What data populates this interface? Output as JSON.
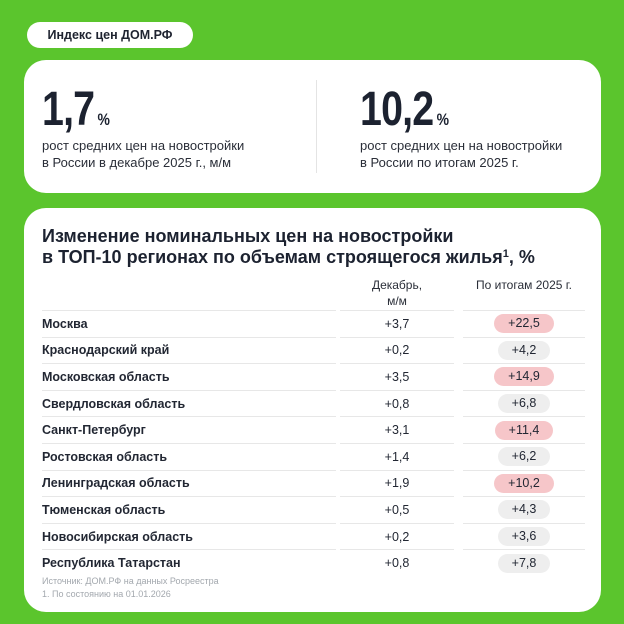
{
  "colors": {
    "background": "#5bc52d",
    "card": "#ffffff",
    "highlight_pill": "#f6c6c9",
    "neutral_pill": "#eeeeee"
  },
  "badge": {
    "label": "Индекс цен ДОМ.РФ"
  },
  "stats": [
    {
      "value": "1,7",
      "unit": "%",
      "caption_line1": "рост средних цен на новостройки",
      "caption_line2": "в России в декабре 2025 г., м/м"
    },
    {
      "value": "10,2",
      "unit": "%",
      "caption_line1": "рост средних цен на новостройки",
      "caption_line2": "в России по итогам 2025 г."
    }
  ],
  "chart_data": {
    "type": "table",
    "title_line1": "Изменение номинальных цен на новостройки",
    "title_line2": "в ТОП-10 регионах по объемам строящегося жилья",
    "title_footnote_mark": "1",
    "title_suffix": ", %",
    "columns": {
      "december_line1": "Декабрь,",
      "december_line2": "м/м",
      "year": "По итогам 2025 г."
    },
    "rows": [
      {
        "region": "Москва",
        "december": "+3,7",
        "year": "+22,5",
        "highlight": true
      },
      {
        "region": "Краснодарский край",
        "december": "+0,2",
        "year": "+4,2",
        "highlight": false
      },
      {
        "region": "Московская область",
        "december": "+3,5",
        "year": "+14,9",
        "highlight": true
      },
      {
        "region": "Свердловская область",
        "december": "+0,8",
        "year": "+6,8",
        "highlight": false
      },
      {
        "region": "Санкт-Петербург",
        "december": "+3,1",
        "year": "+11,4",
        "highlight": true
      },
      {
        "region": "Ростовская область",
        "december": "+1,4",
        "year": "+6,2",
        "highlight": false
      },
      {
        "region": "Ленинградская область",
        "december": "+1,9",
        "year": "+10,2",
        "highlight": true
      },
      {
        "region": "Тюменская область",
        "december": "+0,5",
        "year": "+4,3",
        "highlight": false
      },
      {
        "region": "Новосибирская область",
        "december": "+0,2",
        "year": "+3,6",
        "highlight": false
      },
      {
        "region": "Республика Татарстан",
        "december": "+0,8",
        "year": "+7,8",
        "highlight": false
      }
    ]
  },
  "footer": {
    "source": "Источник: ДОМ.РФ на данных Росреестра",
    "note": "1. По состоянию на 01.01.2026"
  }
}
